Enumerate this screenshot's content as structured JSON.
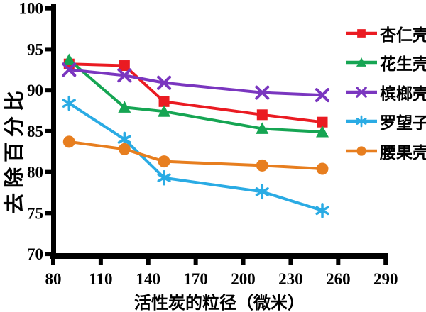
{
  "chart_data": {
    "type": "line",
    "title": "",
    "xlabel": "活性炭的粒径（微米）",
    "ylabel": "去除百分比",
    "xlim": [
      80,
      290
    ],
    "ylim": [
      70,
      100
    ],
    "xticks": [
      80,
      110,
      140,
      170,
      200,
      230,
      260,
      290
    ],
    "yticks": [
      100,
      95,
      90,
      85,
      80,
      75,
      70
    ],
    "grid": false,
    "legend_position": "right",
    "axis_color": "#000000",
    "x": [
      90,
      125,
      150,
      212,
      250
    ],
    "series": [
      {
        "name": "杏仁壳",
        "marker": "square",
        "color": "#ea1b22",
        "values": [
          93.2,
          93.0,
          88.6,
          87.0,
          86.1
        ]
      },
      {
        "name": "花生壳",
        "marker": "triangle",
        "color": "#16a553",
        "values": [
          93.7,
          87.9,
          87.4,
          85.3,
          84.9
        ]
      },
      {
        "name": "槟榔壳",
        "marker": "x",
        "color": "#7a36bf",
        "values": [
          92.5,
          91.8,
          90.9,
          89.7,
          89.4
        ]
      },
      {
        "name": "罗望子",
        "marker": "asterisk",
        "color": "#2aabe4",
        "values": [
          88.4,
          84.0,
          79.3,
          77.6,
          75.3
        ]
      },
      {
        "name": "腰果壳",
        "marker": "circle",
        "color": "#e77e1f",
        "values": [
          83.7,
          82.8,
          81.3,
          80.8,
          80.4
        ]
      }
    ]
  }
}
